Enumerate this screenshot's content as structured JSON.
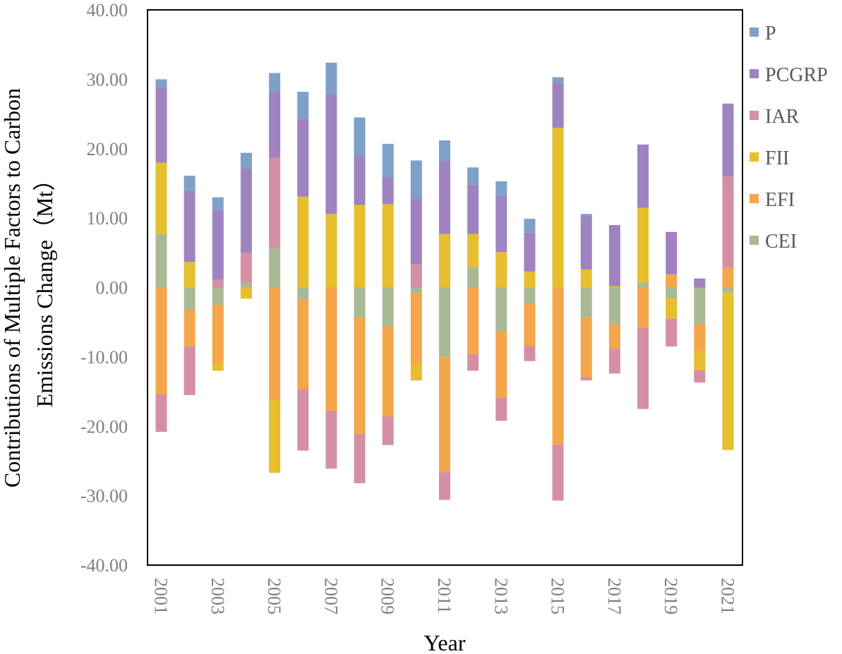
{
  "chart_data": {
    "type": "stacked-bar",
    "title": "",
    "xlabel": "Year",
    "ylabel_lines": [
      "Contributions of Multiple Factors to Carbon",
      "Emissions Change（Mt）"
    ],
    "ylim": [
      -40,
      40
    ],
    "ytick_step": 10,
    "ytick_labels": [
      "40.00",
      "30.00",
      "20.00",
      "10.00",
      "0.00",
      "-10.00",
      "-20.00",
      "-30.00",
      "-40.00"
    ],
    "categories": [
      "2001",
      "2002",
      "2003",
      "2004",
      "2005",
      "2006",
      "2007",
      "2008",
      "2009",
      "2010",
      "2011",
      "2012",
      "2013",
      "2014",
      "2015",
      "2016",
      "2017",
      "2018",
      "2019",
      "2020",
      "2021"
    ],
    "xtick_labels": [
      "2001",
      "2003",
      "2005",
      "2007",
      "2009",
      "2011",
      "2013",
      "2015",
      "2017",
      "2019",
      "2021"
    ],
    "legend_position": "right",
    "legend": [
      "P",
      "PCGRP",
      "IAR",
      "FII",
      "EFI",
      "CEI"
    ],
    "series": [
      {
        "name": "CEI",
        "color": "#a9b994",
        "values": [
          7.7,
          -3.2,
          -2.5,
          0.7,
          5.7,
          -1.8,
          0,
          -4.3,
          -5.6,
          -0.8,
          -10,
          2.9,
          -6.3,
          -2.3,
          0,
          -4.3,
          -5.3,
          0.7,
          -1.6,
          -5.3,
          -0.7
        ]
      },
      {
        "name": "EFI",
        "color": "#f5a54a",
        "values": [
          -15.4,
          -5.3,
          -8.5,
          0,
          -16.3,
          -12.8,
          -17.8,
          -16.8,
          -13,
          -10.2,
          -16.6,
          -9.6,
          -9.6,
          -6.1,
          -22.6,
          -8.6,
          -3.5,
          -5.8,
          1.9,
          -3.8,
          2.9
        ]
      },
      {
        "name": "FII",
        "color": "#e6be2e",
        "values": [
          10.3,
          3.7,
          -1,
          -1.6,
          -10.4,
          13.1,
          10.6,
          11.9,
          12,
          -2.4,
          7.7,
          4.8,
          5.1,
          2.3,
          23,
          2.6,
          0.2,
          10.8,
          -2.9,
          -2.8,
          -22.7
        ]
      },
      {
        "name": "IAR",
        "color": "#d48fa5",
        "values": [
          -5.4,
          -7,
          1.1,
          4.3,
          13,
          -8.9,
          -8.3,
          -7.1,
          -4.1,
          3.4,
          -4,
          -2.4,
          -3.3,
          -2.2,
          -8.1,
          -0.5,
          -3.6,
          -11.7,
          -4,
          -1.8,
          13.1
        ]
      },
      {
        "name": "PCGRP",
        "color": "#9e83c0",
        "values": [
          10.9,
          10.3,
          10.1,
          12.2,
          9.5,
          11.2,
          17.2,
          7.1,
          3.9,
          9.4,
          10.5,
          7.1,
          8.1,
          5.6,
          6.5,
          7.7,
          8.8,
          9.1,
          6.1,
          1.3,
          10.5
        ]
      },
      {
        "name": "P",
        "color": "#7fa0c8",
        "values": [
          1.1,
          2.1,
          1.8,
          2.2,
          2.7,
          3.9,
          4.6,
          5.5,
          4.8,
          5.5,
          3,
          2.5,
          2.1,
          2,
          0.8,
          0.3,
          0,
          0,
          0,
          0,
          0
        ]
      }
    ]
  }
}
